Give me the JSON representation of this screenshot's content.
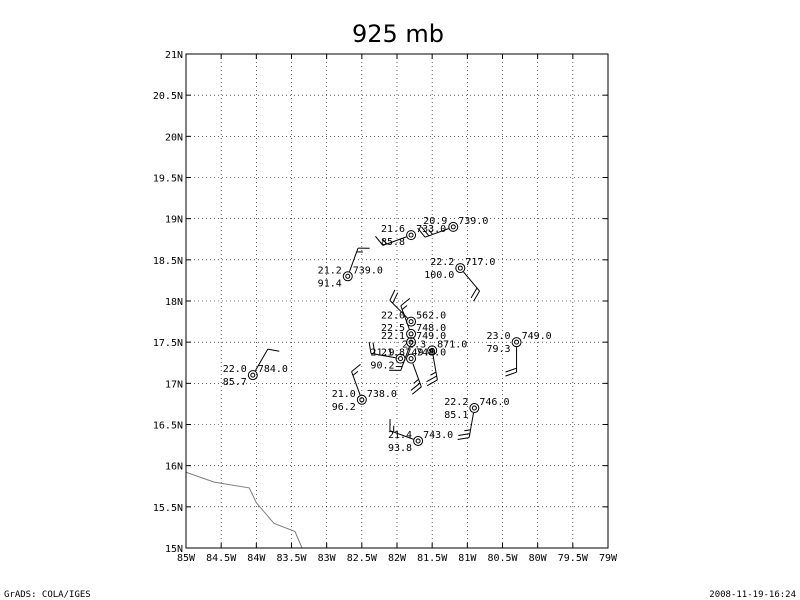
{
  "title": "925 mb",
  "footer": {
    "left": "GrADS: COLA/IGES",
    "right": "2008-11-19-16:24"
  },
  "axes": {
    "lon_range": [
      -85,
      -79
    ],
    "lat_range": [
      15,
      21
    ],
    "lon_step": 0.5,
    "lat_step": 0.5,
    "lon_labels": [
      "85W",
      "84.5W",
      "84W",
      "83.5W",
      "83W",
      "82.5W",
      "82W",
      "81.5W",
      "81W",
      "80.5W",
      "80W",
      "79.5W",
      "79W"
    ],
    "lat_labels": [
      "15N",
      "15.5N",
      "16N",
      "16.5N",
      "17N",
      "17.5N",
      "18N",
      "18.5N",
      "19N",
      "19.5N",
      "20N",
      "20.5N",
      "21N"
    ],
    "grid": true
  },
  "colors": {
    "frame": "#000000",
    "grid": "#000000",
    "coast": "#7f7f7f",
    "station": "#000000"
  },
  "coastline": [
    [
      -85,
      15.92
    ],
    [
      -84.6,
      15.8
    ],
    [
      -84.1,
      15.73
    ],
    [
      -84.0,
      15.55
    ],
    [
      -83.75,
      15.3
    ],
    [
      -83.45,
      15.2
    ],
    [
      -83.35,
      15.0
    ]
  ],
  "stations": [
    {
      "lon": -81.2,
      "lat": 18.9,
      "temp": "20.9",
      "value": "739.0",
      "rh": "",
      "wdir": 250,
      "wspd": 25
    },
    {
      "lon": -81.8,
      "lat": 18.8,
      "temp": "21.6",
      "value": "733.0",
      "rh": "85.8",
      "wdir": 250,
      "wspd": 15
    },
    {
      "lon": -81.1,
      "lat": 18.4,
      "temp": "22.2",
      "value": "717.0",
      "rh": "100.0",
      "wdir": 140,
      "wspd": 20
    },
    {
      "lon": -82.7,
      "lat": 18.3,
      "temp": "21.2",
      "value": "739.0",
      "rh": "91.4",
      "wdir": 20,
      "wspd": 15
    },
    {
      "lon": -80.3,
      "lat": 17.5,
      "temp": "23.0",
      "value": "749.0",
      "rh": "79.3",
      "wdir": 180,
      "wspd": 20
    },
    {
      "lon": -81.8,
      "lat": 17.75,
      "temp": "22.0",
      "value": "562.0",
      "rh": "",
      "wdir": 315,
      "wspd": 20
    },
    {
      "lon": -81.8,
      "lat": 17.6,
      "temp": "22.5",
      "value": "748.0",
      "rh": "",
      "wdir": 340,
      "wspd": 15
    },
    {
      "lon": -81.8,
      "lat": 17.5,
      "temp": "22.1",
      "value": "749.0",
      "rh": "",
      "wdir": 200,
      "wspd": 15
    },
    {
      "lon": -81.5,
      "lat": 17.4,
      "temp": "22.3",
      "value": "871.0",
      "rh": "",
      "wdir": 170,
      "wspd": 25
    },
    {
      "lon": -81.95,
      "lat": 17.3,
      "temp": "21.9",
      "value": "749.0",
      "rh": "90.2",
      "wdir": 280,
      "wspd": 20
    },
    {
      "lon": -81.8,
      "lat": 17.3,
      "temp": "21.8",
      "value": "748.0",
      "rh": "",
      "wdir": 160,
      "wspd": 25
    },
    {
      "lon": -84.05,
      "lat": 17.1,
      "temp": "22.0",
      "value": "784.0",
      "rh": "85.7",
      "wdir": 30,
      "wspd": 10
    },
    {
      "lon": -82.5,
      "lat": 16.8,
      "temp": "21.0",
      "value": "738.0",
      "rh": "96.2",
      "wdir": 340,
      "wspd": 15
    },
    {
      "lon": -80.9,
      "lat": 16.7,
      "temp": "22.2",
      "value": "746.0",
      "rh": "85.1",
      "wdir": 190,
      "wspd": 25
    },
    {
      "lon": -81.7,
      "lat": 16.3,
      "temp": "21.4",
      "value": "743.0",
      "rh": "93.8",
      "wdir": 290,
      "wspd": 15
    }
  ]
}
